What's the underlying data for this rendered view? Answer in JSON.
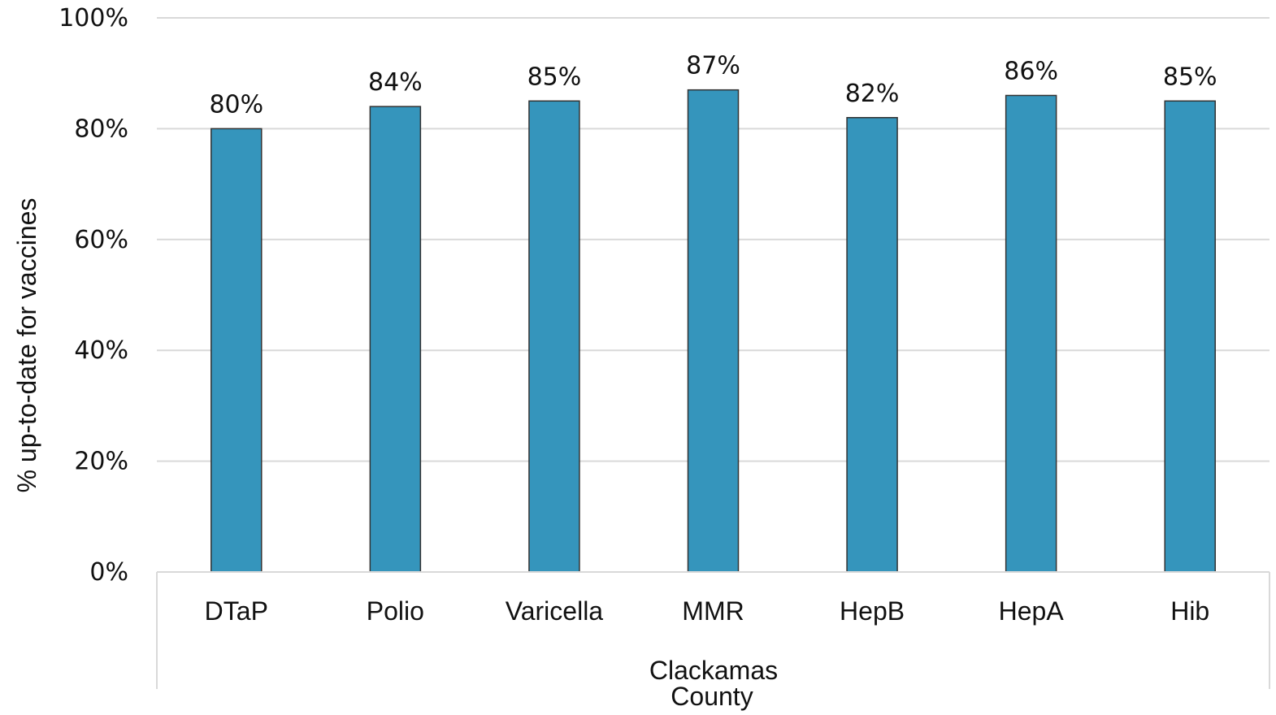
{
  "chart_data": {
    "type": "bar",
    "categories": [
      "DTaP",
      "Polio",
      "Varicella",
      "MMR",
      "HepB",
      "HepA",
      "Hib"
    ],
    "values": [
      80,
      84,
      85,
      87,
      82,
      86,
      85
    ],
    "data_labels": [
      "80%",
      "84%",
      "85%",
      "87%",
      "82%",
      "86%",
      "85%"
    ],
    "group_label_lines": [
      "Clackamas",
      "County"
    ],
    "ylabel": "% up-to-date for vaccines",
    "ylim": [
      0,
      100
    ],
    "yticks": [
      0,
      20,
      40,
      60,
      80,
      100
    ],
    "ytick_labels": [
      "0%",
      "20%",
      "40%",
      "60%",
      "80%",
      "100%"
    ],
    "grid": true,
    "bar_color": "#3595bc",
    "bar_edge_color": "#333333"
  }
}
